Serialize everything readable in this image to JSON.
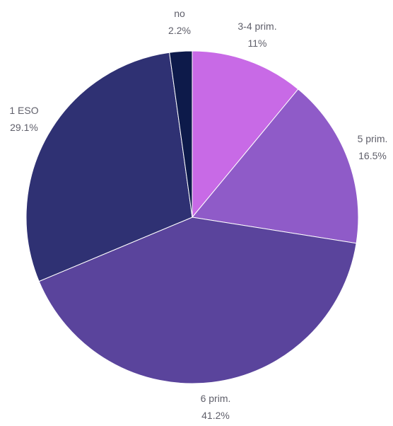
{
  "chart_data": {
    "type": "pie",
    "start": "12 o'clock",
    "direction": "clockwise",
    "slices": [
      {
        "label": "3-4 prim.",
        "value": 11.0,
        "value_label": "11%",
        "color": "#c86ae6"
      },
      {
        "label": "5 prim.",
        "value": 16.5,
        "value_label": "16.5%",
        "color": "#8f5bc8"
      },
      {
        "label": "6 prim.",
        "value": 41.2,
        "value_label": "41.2%",
        "color": "#5a449c"
      },
      {
        "label": "1 ESO",
        "value": 29.1,
        "value_label": "29.1%",
        "color": "#2f3173"
      },
      {
        "label": "no",
        "value": 2.2,
        "value_label": "2.2%",
        "color": "#0d1a4a"
      }
    ],
    "label_color": "#5f5f6a",
    "background": "#ffffff"
  }
}
